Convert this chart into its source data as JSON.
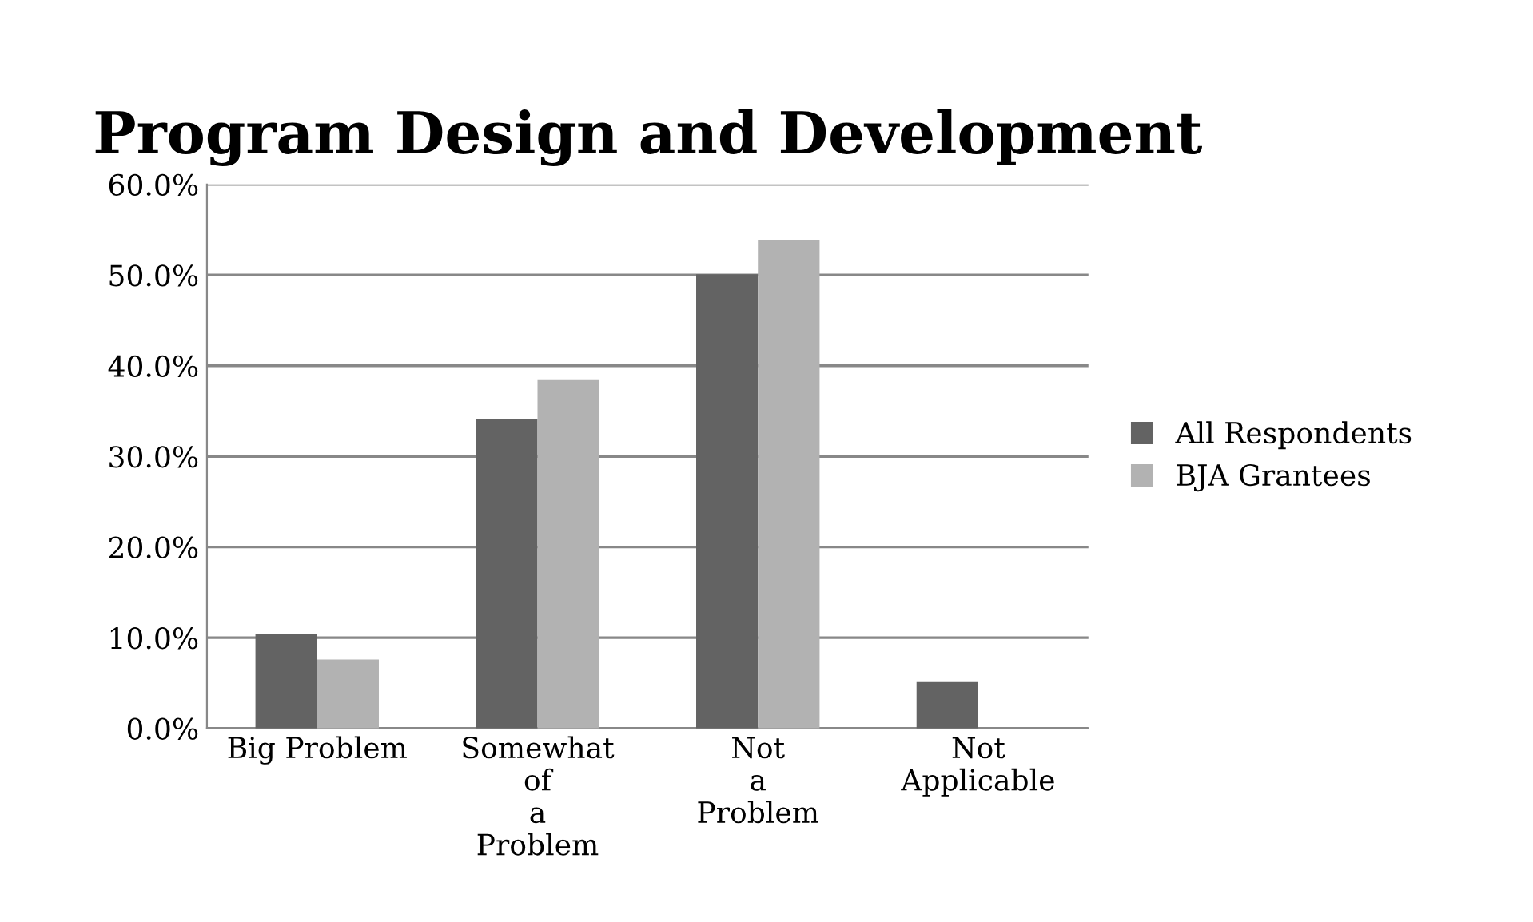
{
  "chart_data": {
    "type": "bar",
    "title": "Program Design and Development",
    "categories": [
      "Big Problem",
      "Somewhat of a Problem",
      "Not a Problem",
      "Not Applicable"
    ],
    "series": [
      {
        "name": "All Respondents",
        "color": "#636363",
        "values": [
          10.4,
          34.1,
          50.1,
          5.2
        ]
      },
      {
        "name": "BJA Grantees",
        "color": "#b2b2b2",
        "values": [
          7.6,
          38.5,
          53.9,
          null
        ]
      }
    ],
    "ylim": [
      0,
      60
    ],
    "yticks": [
      {
        "value": 0,
        "label": "0.0%"
      },
      {
        "value": 10,
        "label": "10.0%"
      },
      {
        "value": 20,
        "label": "20.0%"
      },
      {
        "value": 30,
        "label": "30.0%"
      },
      {
        "value": 40,
        "label": "40.0%"
      },
      {
        "value": 50,
        "label": "50.0%"
      },
      {
        "value": 60,
        "label": "60.0%"
      }
    ],
    "grid": "y",
    "legend": "right"
  }
}
